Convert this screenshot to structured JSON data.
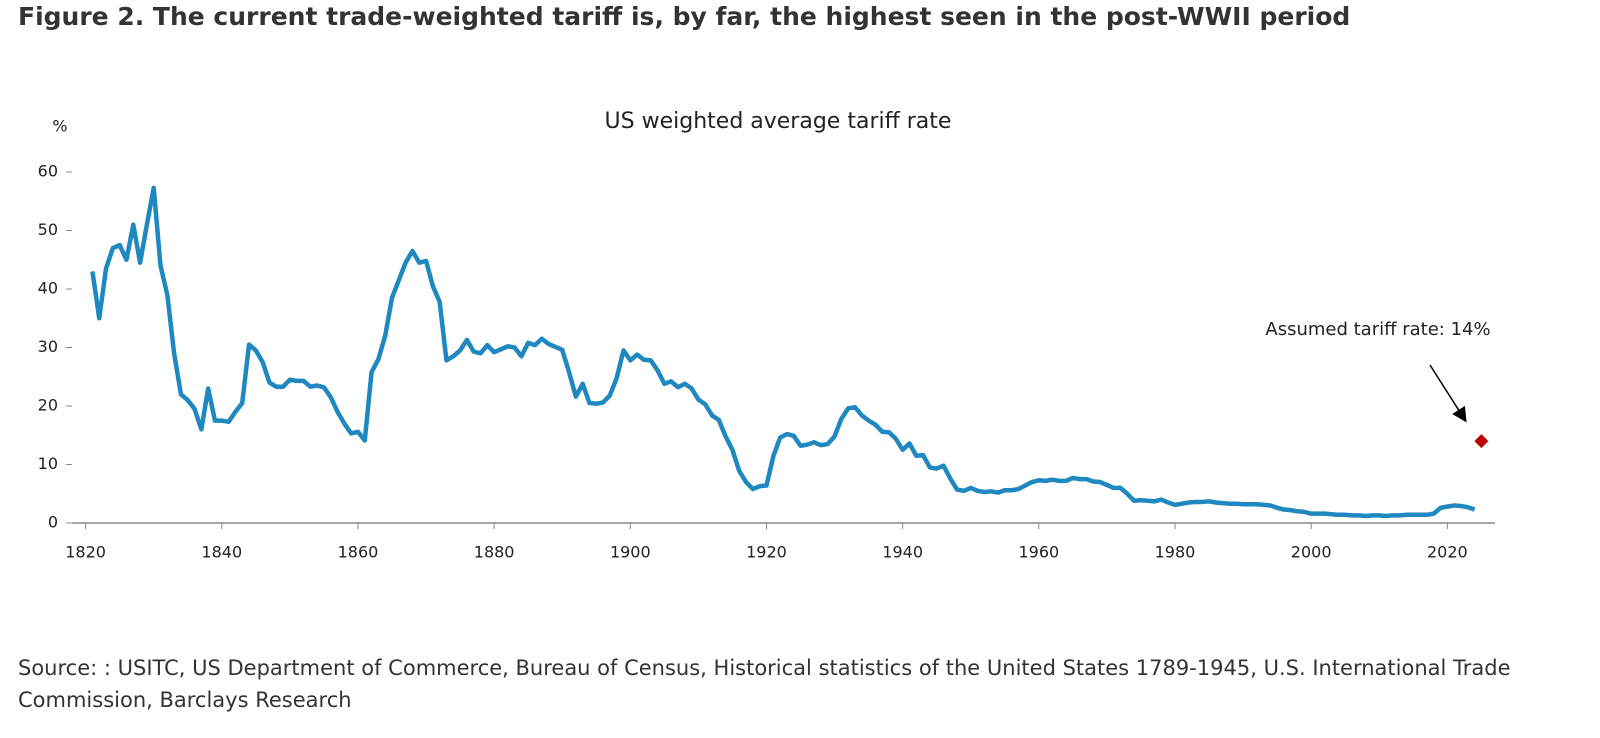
{
  "chart_data": {
    "type": "line",
    "title": "Figure 2. The current trade-weighted tariff is, by far, the highest seen in the post-WWII period",
    "subtitle": "US weighted average tariff rate",
    "y_label": "%",
    "annotation": "Assumed tariff rate: 14%",
    "source": "Source: : USITC, US Department of Commerce, Bureau of Census, Historical statistics of the United States 1789-1945, U.S. International Trade Commission, Barclays Research",
    "xlim": [
      1818,
      2027
    ],
    "xticks": [
      1820,
      1840,
      1860,
      1880,
      1900,
      1920,
      1940,
      1960,
      1980,
      2000,
      2020
    ],
    "ylim": [
      0,
      60
    ],
    "yticks": [
      0,
      10,
      20,
      30,
      40,
      50,
      60
    ],
    "series": [
      {
        "color": "#1f88c0",
        "x": [
          1821,
          1822,
          1823,
          1824,
          1825,
          1826,
          1827,
          1828,
          1829,
          1830,
          1831,
          1832,
          1833,
          1834,
          1835,
          1836,
          1837,
          1838,
          1839,
          1840,
          1841,
          1842,
          1843,
          1844,
          1845,
          1846,
          1847,
          1848,
          1849,
          1850,
          1851,
          1852,
          1853,
          1854,
          1855,
          1856,
          1857,
          1858,
          1859,
          1860,
          1861,
          1862,
          1863,
          1864,
          1865,
          1866,
          1867,
          1868,
          1869,
          1870,
          1871,
          1872,
          1873,
          1874,
          1875,
          1876,
          1877,
          1878,
          1879,
          1880,
          1881,
          1882,
          1883,
          1884,
          1885,
          1886,
          1887,
          1888,
          1889,
          1890,
          1891,
          1892,
          1893,
          1894,
          1895,
          1896,
          1897,
          1898,
          1899,
          1900,
          1901,
          1902,
          1903,
          1904,
          1905,
          1906,
          1907,
          1908,
          1909,
          1910,
          1911,
          1912,
          1913,
          1914,
          1915,
          1916,
          1917,
          1918,
          1919,
          1920,
          1921,
          1922,
          1923,
          1924,
          1925,
          1926,
          1927,
          1928,
          1929,
          1930,
          1931,
          1932,
          1933,
          1934,
          1935,
          1936,
          1937,
          1938,
          1939,
          1940,
          1941,
          1942,
          1943,
          1944,
          1945,
          1946,
          1947,
          1948,
          1949,
          1950,
          1951,
          1952,
          1953,
          1954,
          1955,
          1956,
          1957,
          1958,
          1959,
          1960,
          1961,
          1962,
          1963,
          1964,
          1965,
          1966,
          1967,
          1968,
          1969,
          1970,
          1971,
          1972,
          1973,
          1974,
          1975,
          1976,
          1977,
          1978,
          1979,
          1980,
          1981,
          1982,
          1983,
          1984,
          1985,
          1986,
          1987,
          1988,
          1989,
          1990,
          1991,
          1992,
          1993,
          1994,
          1995,
          1996,
          1997,
          1998,
          1999,
          2000,
          2001,
          2002,
          2003,
          2004,
          2005,
          2006,
          2007,
          2008,
          2009,
          2010,
          2011,
          2012,
          2013,
          2014,
          2015,
          2016,
          2017,
          2018,
          2019,
          2020,
          2021,
          2022,
          2023,
          2024
        ],
        "values": [
          43,
          35,
          43.5,
          47,
          47.5,
          45,
          51,
          44.5,
          51,
          57.3,
          44,
          39,
          29,
          22,
          21,
          19.5,
          16,
          23,
          17.5,
          17.5,
          17.3,
          19,
          20.5,
          30.5,
          29.5,
          27.5,
          24,
          23.3,
          23.3,
          24.5,
          24.3,
          24.3,
          23.3,
          23.5,
          23.2,
          21.5,
          19,
          17,
          15.3,
          15.6,
          14.1,
          25.8,
          28,
          32,
          38.5,
          41.5,
          44.5,
          46.5,
          44.5,
          44.8,
          40.5,
          37.8,
          27.8,
          28.5,
          29.5,
          31.3,
          29.3,
          29,
          30.4,
          29.2,
          29.7,
          30.2,
          30,
          28.5,
          30.8,
          30.4,
          31.5,
          30.6,
          30.1,
          29.6,
          25.8,
          21.6,
          23.8,
          20.5,
          20.4,
          20.6,
          21.8,
          24.8,
          29.5,
          27.8,
          28.8,
          27.9,
          27.8,
          26.1,
          23.8,
          24.2,
          23.2,
          23.8,
          23,
          21.1,
          20.3,
          18.4,
          17.6,
          14.8,
          12.5,
          8.9,
          7,
          5.8,
          6.3,
          6.4,
          11.4,
          14.6,
          15.2,
          14.9,
          13.2,
          13.4,
          13.8,
          13.3,
          13.5,
          14.8,
          17.8,
          19.6,
          19.8,
          18.4,
          17.5,
          16.8,
          15.6,
          15.5,
          14.4,
          12.5,
          13.6,
          11.5,
          11.6,
          9.5,
          9.3,
          9.8,
          7.6,
          5.7,
          5.5,
          6,
          5.5,
          5.3,
          5.4,
          5.2,
          5.6,
          5.6,
          5.8,
          6.4,
          7,
          7.3,
          7.2,
          7.4,
          7.2,
          7.2,
          7.7,
          7.5,
          7.5,
          7.1,
          7,
          6.5,
          6,
          6,
          5,
          3.8,
          3.9,
          3.8,
          3.7,
          4,
          3.5,
          3.1,
          3.3,
          3.5,
          3.6,
          3.6,
          3.7,
          3.5,
          3.4,
          3.3,
          3.3,
          3.2,
          3.2,
          3.2,
          3.1,
          3,
          2.6,
          2.3,
          2.2,
          2,
          1.9,
          1.6,
          1.6,
          1.6,
          1.5,
          1.4,
          1.4,
          1.3,
          1.3,
          1.2,
          1.3,
          1.3,
          1.2,
          1.3,
          1.3,
          1.4,
          1.4,
          1.4,
          1.4,
          1.6,
          2.6,
          2.8,
          3,
          2.9,
          2.7,
          2.3
        ]
      },
      {
        "type": "scatter",
        "color": "#c00000",
        "x": [
          2025
        ],
        "values": [
          14
        ]
      }
    ]
  }
}
